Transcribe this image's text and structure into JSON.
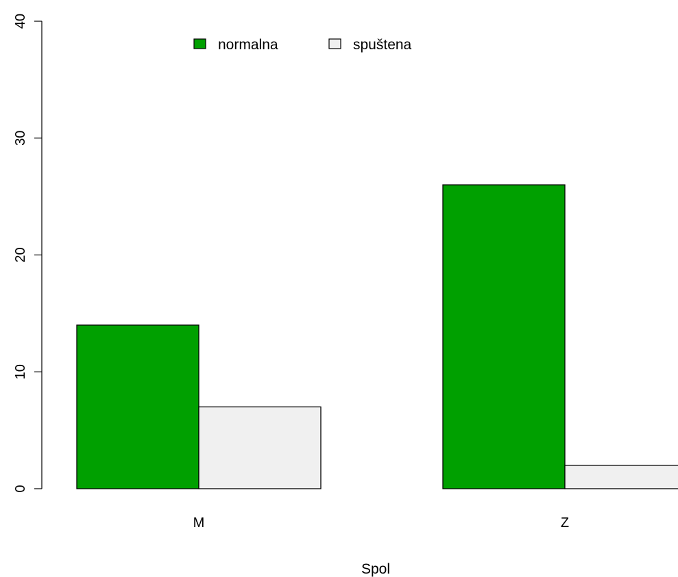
{
  "chart_data": {
    "type": "bar",
    "categories": [
      "M",
      "Z"
    ],
    "series": [
      {
        "name": "normalna",
        "values": [
          14,
          26
        ],
        "color": "#00A000"
      },
      {
        "name": "spuštena",
        "values": [
          7,
          2
        ],
        "color": "#F0F0F0"
      }
    ],
    "xlabel": "Spol",
    "ylabel": "",
    "ylim": [
      0,
      40
    ],
    "yticks": [
      0,
      10,
      20,
      30,
      40
    ],
    "grid": false,
    "legend_position": "top"
  }
}
